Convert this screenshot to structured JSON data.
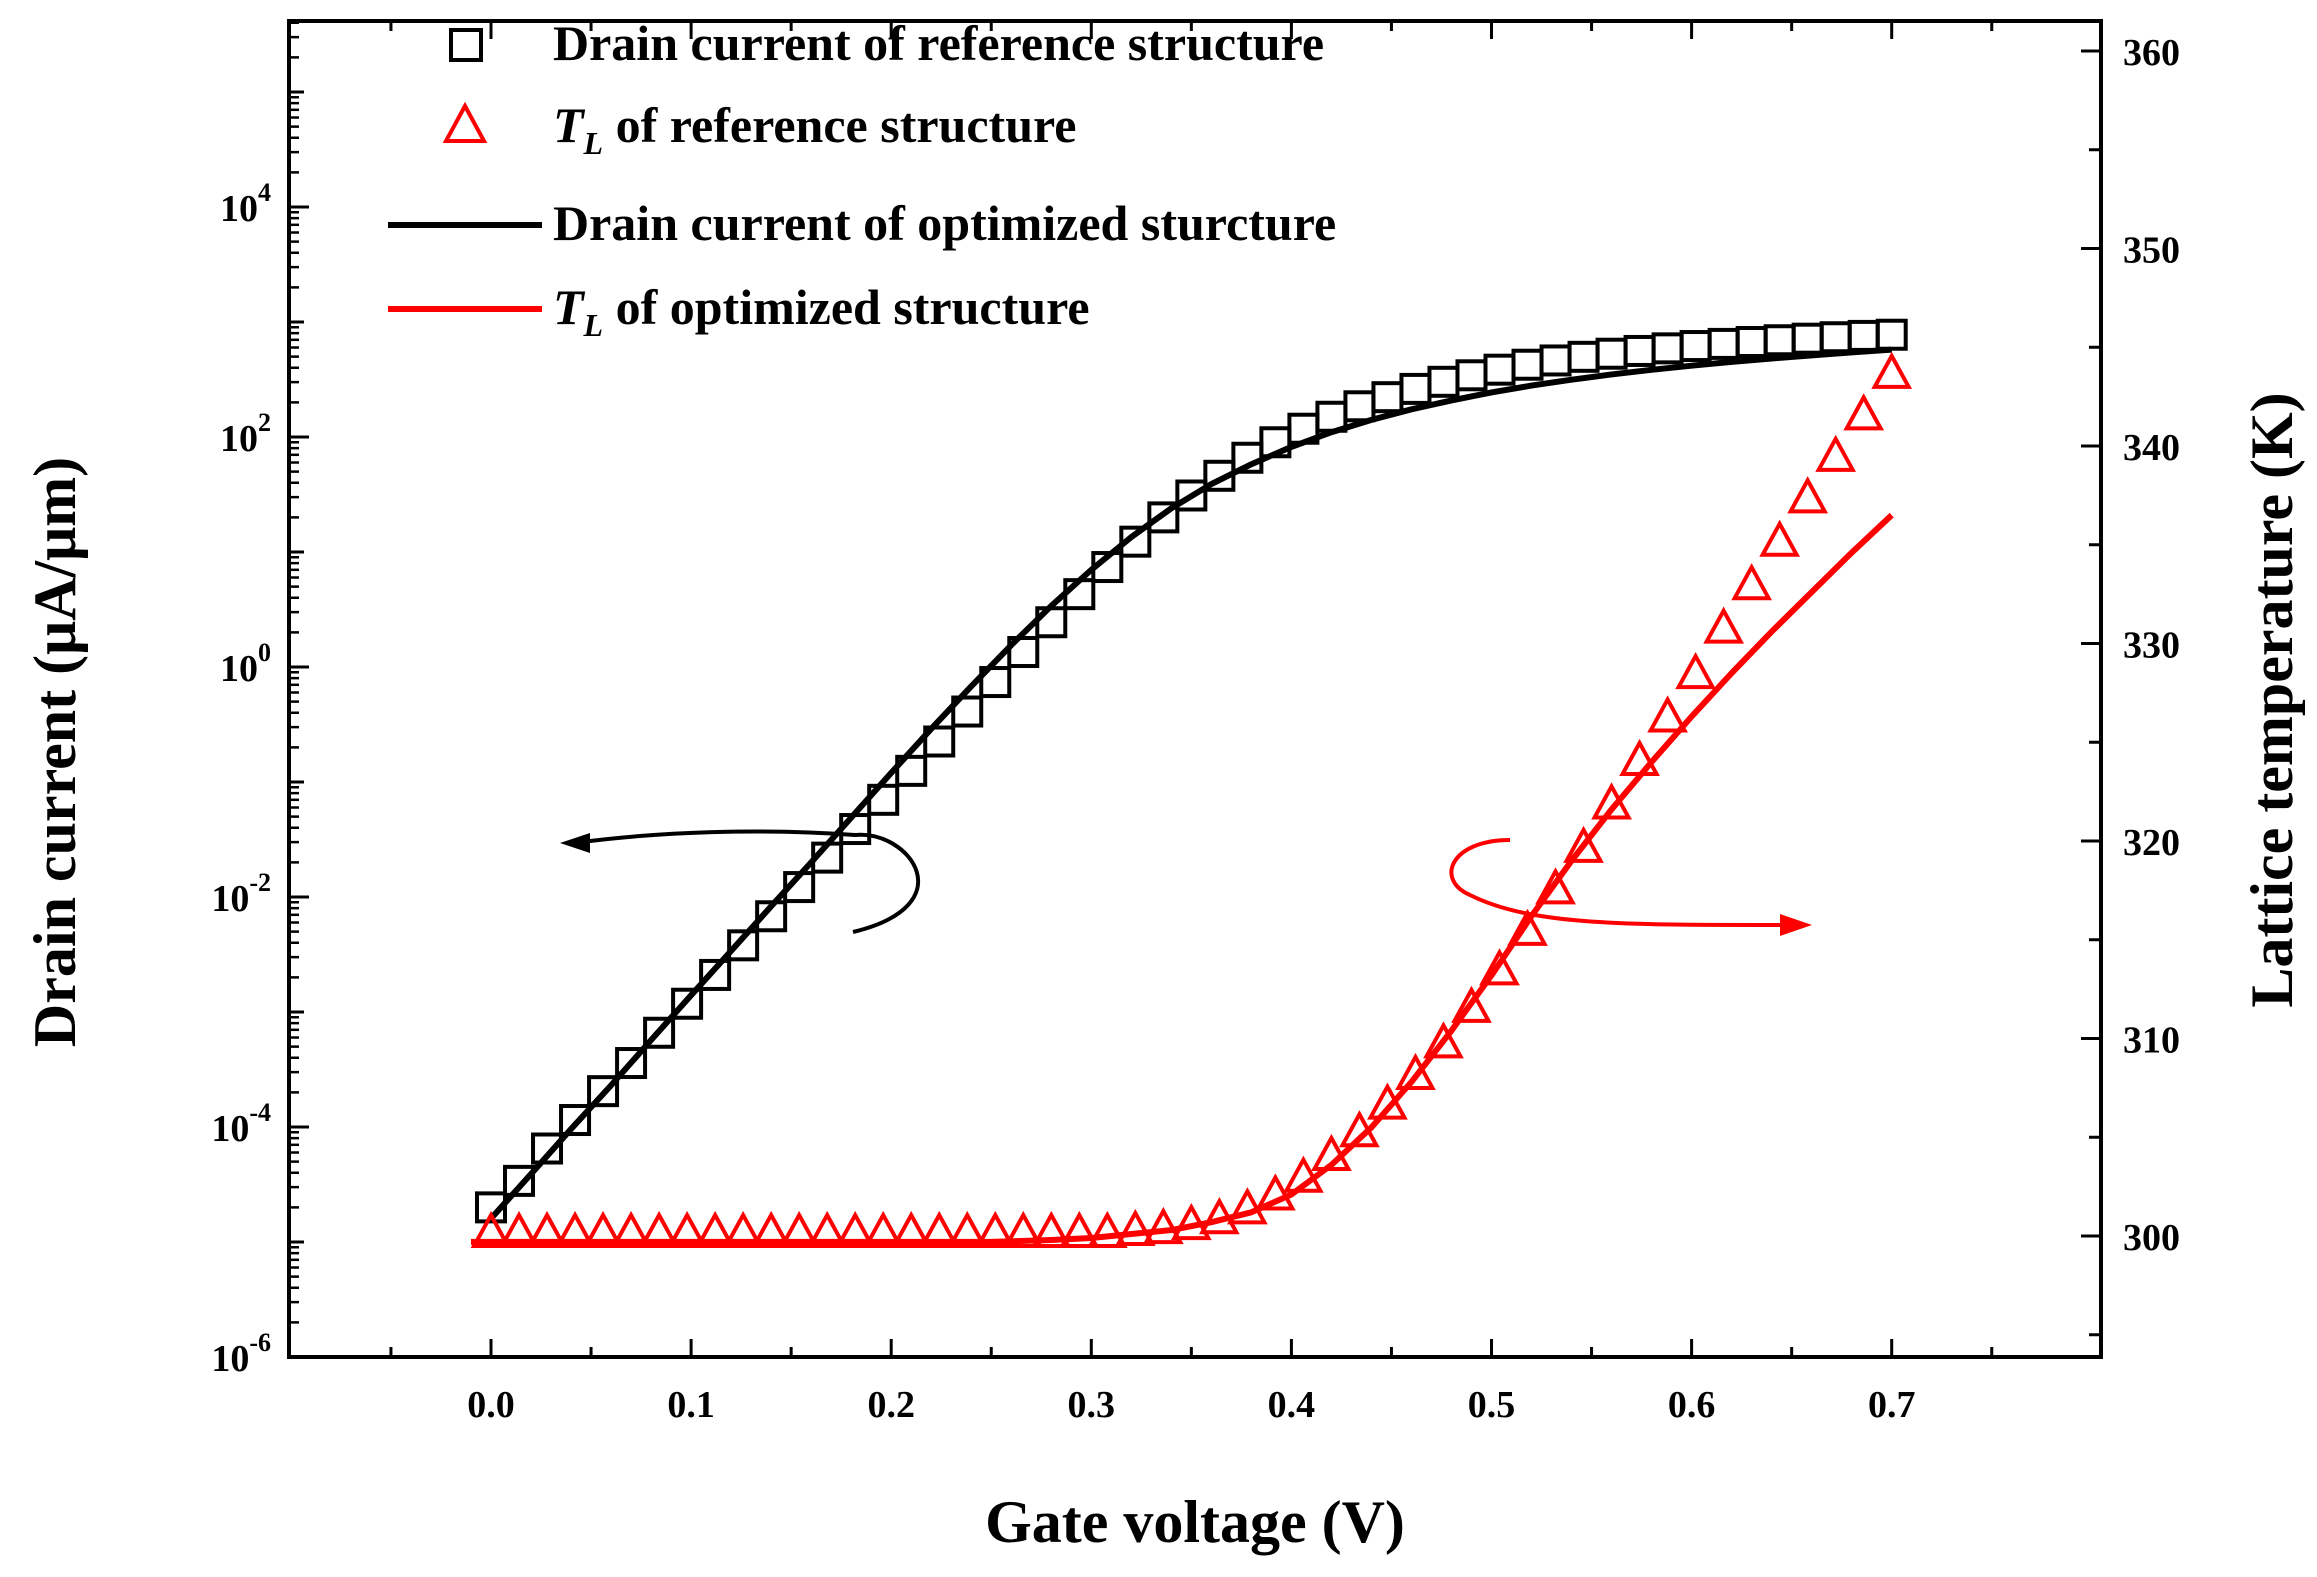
{
  "chart_data": {
    "type": "line",
    "title": "",
    "xlabel": "Gate voltage (V)",
    "ylabel_left": "Drain current (μA/μm)",
    "ylabel_right": "Lattice temperature (K)",
    "xlim": [
      -0.1,
      0.79
    ],
    "ylim_left": [
      1e-06,
      1000000.0
    ],
    "ylim_left_scale": "log",
    "ylim_right": [
      294,
      362
    ],
    "x_ticks": [
      "0.0",
      "0.1",
      "0.2",
      "0.3",
      "0.4",
      "0.5",
      "0.6",
      "0.7"
    ],
    "y_left_ticks": [
      {
        "base": "10",
        "exp": "-6"
      },
      {
        "base": "10",
        "exp": "-4"
      },
      {
        "base": "10",
        "exp": "-2"
      },
      {
        "base": "10",
        "exp": "0"
      },
      {
        "base": "10",
        "exp": "2"
      },
      {
        "base": "10",
        "exp": "4"
      }
    ],
    "y_right_ticks": [
      "300",
      "310",
      "320",
      "330",
      "340",
      "350",
      "360"
    ],
    "legend": [
      {
        "marker": "square",
        "color": "#000000",
        "label": "Drain current of reference structure"
      },
      {
        "marker": "triangle",
        "color": "#ff0000",
        "label_italic": "T",
        "label_sub": "L",
        "label": " of reference structure"
      },
      {
        "marker": "line",
        "color": "#000000",
        "label": "Drain current of optimized sturcture"
      },
      {
        "marker": "line",
        "color": "#ff0000",
        "label_italic": "T",
        "label_sub": "L",
        "label": " of optimized structure"
      }
    ],
    "series": [
      {
        "name": "Drain current of reference structure",
        "axis": "left",
        "style": "square",
        "color": "#000000",
        "x": [
          0.0,
          0.014,
          0.028,
          0.042,
          0.056,
          0.07,
          0.084,
          0.098,
          0.112,
          0.126,
          0.14,
          0.154,
          0.168,
          0.182,
          0.196,
          0.21,
          0.224,
          0.238,
          0.252,
          0.266,
          0.28,
          0.294,
          0.308,
          0.322,
          0.336,
          0.35,
          0.364,
          0.378,
          0.392,
          0.406,
          0.42,
          0.434,
          0.448,
          0.462,
          0.476,
          0.49,
          0.504,
          0.518,
          0.532,
          0.546,
          0.56,
          0.574,
          0.588,
          0.602,
          0.616,
          0.63,
          0.644,
          0.658,
          0.672,
          0.686,
          0.7
        ],
        "y": [
          2e-05,
          3.4e-05,
          6.5e-05,
          0.000115,
          0.000205,
          0.00036,
          0.00066,
          0.00118,
          0.0021,
          0.0038,
          0.0068,
          0.0122,
          0.022,
          0.039,
          0.07,
          0.125,
          0.225,
          0.41,
          0.74,
          1.35,
          2.45,
          4.3,
          7.4,
          12.3,
          20,
          31,
          46,
          66,
          90,
          118,
          150,
          185,
          222,
          262,
          302,
          344,
          385,
          425,
          463,
          498,
          530,
          560,
          590,
          618,
          645,
          670,
          694,
          716,
          737,
          757,
          775
        ]
      },
      {
        "name": "Drain current of optimized sturcture",
        "axis": "left",
        "style": "line",
        "color": "#000000",
        "x": [
          0.0,
          0.02,
          0.04,
          0.06,
          0.08,
          0.1,
          0.12,
          0.14,
          0.16,
          0.18,
          0.2,
          0.22,
          0.24,
          0.26,
          0.28,
          0.3,
          0.32,
          0.34,
          0.36,
          0.38,
          0.4,
          0.42,
          0.44,
          0.46,
          0.48,
          0.5,
          0.52,
          0.54,
          0.56,
          0.58,
          0.6,
          0.62,
          0.64,
          0.66,
          0.68,
          0.7
        ],
        "y": [
          1.6e-05,
          3.9e-05,
          9.6e-05,
          0.00023,
          0.00057,
          0.0014,
          0.0034,
          0.0083,
          0.02,
          0.049,
          0.12,
          0.29,
          0.68,
          1.55,
          3.4,
          7.0,
          13.5,
          24,
          39,
          58,
          82,
          110,
          141,
          174,
          208,
          244,
          280,
          315,
          350,
          384,
          417,
          450,
          482,
          513,
          544,
          575
        ]
      },
      {
        "name": "T_L of reference structure",
        "axis": "right",
        "style": "triangle",
        "color": "#ff0000",
        "x": [
          0.0,
          0.014,
          0.028,
          0.042,
          0.056,
          0.07,
          0.084,
          0.098,
          0.112,
          0.126,
          0.14,
          0.154,
          0.168,
          0.182,
          0.196,
          0.21,
          0.224,
          0.238,
          0.252,
          0.266,
          0.28,
          0.294,
          0.308,
          0.322,
          0.336,
          0.35,
          0.364,
          0.378,
          0.392,
          0.406,
          0.42,
          0.434,
          0.448,
          0.462,
          0.476,
          0.49,
          0.504,
          0.518,
          0.532,
          0.546,
          0.56,
          0.574,
          0.588,
          0.602,
          0.616,
          0.63,
          0.644,
          0.658,
          0.672,
          0.686,
          0.7
        ],
        "y": [
          300.1,
          300.1,
          300.1,
          300.1,
          300.1,
          300.1,
          300.1,
          300.1,
          300.1,
          300.1,
          300.1,
          300.1,
          300.1,
          300.1,
          300.1,
          300.1,
          300.1,
          300.1,
          300.1,
          300.1,
          300.1,
          300.1,
          300.1,
          300.2,
          300.3,
          300.5,
          300.8,
          301.3,
          302.0,
          302.9,
          304.0,
          305.2,
          306.6,
          308.1,
          309.7,
          311.5,
          313.4,
          315.4,
          317.5,
          319.6,
          321.8,
          324.0,
          326.2,
          328.4,
          330.7,
          332.9,
          335.1,
          337.3,
          339.4,
          341.5,
          343.6
        ]
      },
      {
        "name": "T_L of optimized structure",
        "axis": "right",
        "style": "line",
        "color": "#ff0000",
        "x": [
          -0.01,
          0.05,
          0.1,
          0.15,
          0.2,
          0.25,
          0.28,
          0.3,
          0.32,
          0.34,
          0.36,
          0.38,
          0.4,
          0.42,
          0.44,
          0.46,
          0.48,
          0.5,
          0.52,
          0.54,
          0.56,
          0.58,
          0.6,
          0.62,
          0.64,
          0.66,
          0.68,
          0.7
        ],
        "y": [
          299.7,
          299.7,
          299.7,
          299.7,
          299.7,
          299.7,
          299.8,
          299.9,
          300.1,
          300.3,
          300.7,
          301.2,
          302.1,
          303.6,
          305.5,
          307.8,
          310.4,
          313.2,
          316.2,
          319.0,
          321.6,
          324.0,
          326.3,
          328.5,
          330.6,
          332.6,
          334.6,
          336.5
        ]
      }
    ]
  }
}
